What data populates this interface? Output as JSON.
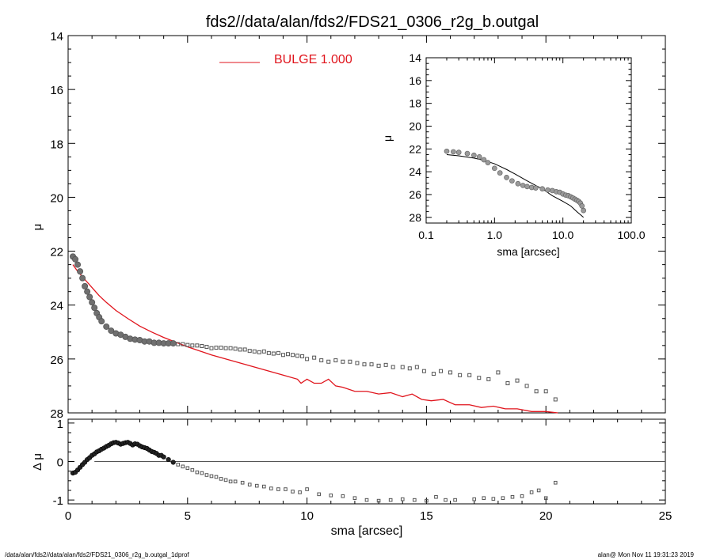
{
  "title": "fds2//data/alan/fds2/FDS21_0306_r2g_b.outgal",
  "footer": {
    "left": "/data/alan/fds2//data/alan/fds2/FDS21_0306_r2g_b.outgal_1dprof",
    "right": "alan@  Mon Nov 11 19:31:23 2019"
  },
  "colors": {
    "model": "#e0141c",
    "data": "#707070",
    "axes": "#000000"
  },
  "chart_data": [
    {
      "type": "scatter",
      "panel": "main-profile",
      "xlabel": "",
      "ylabel": "μ",
      "xlim": [
        0,
        25
      ],
      "ylim": [
        28,
        14
      ],
      "y_inverted": true,
      "xticks": [
        0,
        5,
        10,
        15,
        20,
        25
      ],
      "yticks": [
        14,
        16,
        18,
        20,
        22,
        24,
        26,
        28
      ],
      "legend": {
        "label": "BULGE  1.000",
        "placement": "top-center"
      },
      "series": [
        {
          "name": "BULGE  1.000",
          "kind": "line",
          "x": [
            0.2,
            0.4,
            0.6,
            0.8,
            1.0,
            1.3,
            1.6,
            2.0,
            2.5,
            3.0,
            3.5,
            4.0,
            5.0,
            6.0,
            7.0,
            8.0,
            9.0,
            9.6,
            9.75,
            10.0,
            10.3,
            10.6,
            10.9,
            11.2,
            11.5,
            12.0,
            12.5,
            13.0,
            13.5,
            14.0,
            14.4,
            14.8,
            15.2,
            15.7,
            16.2,
            16.8,
            17.3,
            17.8,
            18.3,
            18.8,
            19.4,
            20.0,
            20.5
          ],
          "y": [
            22.5,
            22.75,
            22.95,
            23.15,
            23.35,
            23.65,
            23.9,
            24.2,
            24.5,
            24.78,
            25.0,
            25.2,
            25.55,
            25.85,
            26.1,
            26.35,
            26.6,
            26.75,
            26.9,
            26.75,
            26.9,
            26.9,
            26.75,
            27.0,
            27.05,
            27.2,
            27.2,
            27.3,
            27.25,
            27.4,
            27.3,
            27.5,
            27.55,
            27.5,
            27.7,
            27.7,
            27.8,
            27.75,
            27.85,
            27.85,
            27.95,
            27.95,
            28.0
          ]
        },
        {
          "name": "",
          "kind": "points",
          "x": [
            0.2,
            0.3,
            0.4,
            0.5,
            0.6,
            0.7,
            0.8,
            0.9,
            1.0,
            1.1,
            1.2,
            1.3,
            1.4,
            1.6,
            1.8,
            2.0,
            2.2,
            2.4,
            2.6,
            2.8,
            3.0,
            3.2,
            3.4,
            3.6,
            3.8,
            4.0,
            4.2,
            4.4,
            4.6,
            4.8,
            5.0,
            5.2,
            5.4,
            5.6,
            5.8,
            6.0,
            6.2,
            6.4,
            6.6,
            6.8,
            7.0,
            7.2,
            7.4,
            7.6,
            7.8,
            8.0,
            8.2,
            8.4,
            8.6,
            8.8,
            9.0,
            9.2,
            9.4,
            9.6,
            9.8,
            10.0,
            10.3,
            10.6,
            10.9,
            11.2,
            11.5,
            11.8,
            12.1,
            12.4,
            12.7,
            13.0,
            13.3,
            13.6,
            14.0,
            14.3,
            14.6,
            14.9,
            15.3,
            15.6,
            16.0,
            16.4,
            16.8,
            17.2,
            17.6,
            18.0,
            18.4,
            18.8,
            19.2,
            19.6,
            20.0,
            20.4
          ],
          "y": [
            22.2,
            22.3,
            22.5,
            22.75,
            23.0,
            23.3,
            23.5,
            23.7,
            23.9,
            24.1,
            24.3,
            24.45,
            24.6,
            24.8,
            24.95,
            25.05,
            25.1,
            25.18,
            25.25,
            25.28,
            25.3,
            25.35,
            25.35,
            25.4,
            25.4,
            25.42,
            25.42,
            25.42,
            25.45,
            25.45,
            25.48,
            25.5,
            25.5,
            25.52,
            25.55,
            25.6,
            25.58,
            25.58,
            25.6,
            25.6,
            25.62,
            25.65,
            25.65,
            25.7,
            25.72,
            25.75,
            25.72,
            25.78,
            25.8,
            25.78,
            25.85,
            25.82,
            25.85,
            25.88,
            25.9,
            26.0,
            25.95,
            26.05,
            26.1,
            26.05,
            26.1,
            26.1,
            26.15,
            26.2,
            26.2,
            26.25,
            26.22,
            26.3,
            26.3,
            26.35,
            26.3,
            26.45,
            26.55,
            26.45,
            26.5,
            26.6,
            26.6,
            26.7,
            26.75,
            26.5,
            26.9,
            26.8,
            27.0,
            27.2,
            27.2,
            27.5
          ]
        }
      ]
    },
    {
      "type": "scatter",
      "panel": "residual",
      "xlabel": "sma [arcsec]",
      "ylabel": "Δ μ",
      "xlim": [
        0,
        25
      ],
      "ylim": [
        -1.1,
        1.1
      ],
      "xticks": [
        0,
        5,
        10,
        15,
        20,
        25
      ],
      "yticks": [
        -1,
        0,
        1
      ],
      "reference_line": {
        "y": 0,
        "x_from": 1.1,
        "x_to": 25
      },
      "series": [
        {
          "name": "",
          "kind": "points",
          "x": [
            0.2,
            0.3,
            0.4,
            0.5,
            0.6,
            0.7,
            0.8,
            0.9,
            1.0,
            1.1,
            1.2,
            1.3,
            1.4,
            1.5,
            1.6,
            1.7,
            1.8,
            1.9,
            2.0,
            2.1,
            2.2,
            2.3,
            2.4,
            2.5,
            2.6,
            2.7,
            2.8,
            2.9,
            3.0,
            3.1,
            3.2,
            3.3,
            3.4,
            3.5,
            3.6,
            3.7,
            3.8,
            3.9,
            4.0,
            4.2,
            4.4,
            4.6,
            4.8,
            5.0,
            5.2,
            5.4,
            5.6,
            5.8,
            6.0,
            6.2,
            6.4,
            6.6,
            6.8,
            7.0,
            7.3,
            7.6,
            7.9,
            8.2,
            8.5,
            8.8,
            9.1,
            9.4,
            9.7,
            10.0,
            10.5,
            11.0,
            11.5,
            12.0,
            12.5,
            13.0,
            13.5,
            14.0,
            14.5,
            15.0,
            15.4,
            15.8,
            16.2,
            17.0,
            17.4,
            17.8,
            18.2,
            18.6,
            19.0,
            19.4,
            19.7,
            20.0,
            20.4
          ],
          "y": [
            -0.3,
            -0.28,
            -0.22,
            -0.15,
            -0.08,
            -0.02,
            0.05,
            0.1,
            0.16,
            0.2,
            0.25,
            0.28,
            0.32,
            0.35,
            0.39,
            0.42,
            0.46,
            0.49,
            0.5,
            0.48,
            0.45,
            0.47,
            0.49,
            0.5,
            0.47,
            0.43,
            0.46,
            0.45,
            0.41,
            0.38,
            0.36,
            0.34,
            0.3,
            0.26,
            0.24,
            0.21,
            0.16,
            0.16,
            0.12,
            0.05,
            -0.02,
            -0.08,
            -0.13,
            -0.17,
            -0.22,
            -0.28,
            -0.3,
            -0.35,
            -0.38,
            -0.4,
            -0.45,
            -0.48,
            -0.52,
            -0.52,
            -0.55,
            -0.6,
            -0.63,
            -0.65,
            -0.7,
            -0.72,
            -0.72,
            -0.78,
            -0.8,
            -0.72,
            -0.85,
            -0.88,
            -0.9,
            -0.95,
            -1.0,
            -1.02,
            -1.0,
            -0.98,
            -1.0,
            -1.02,
            -0.92,
            -1.0,
            -1.0,
            -0.98,
            -0.95,
            -0.97,
            -0.95,
            -0.92,
            -0.9,
            -0.8,
            -0.75,
            -0.95,
            -0.55
          ]
        }
      ]
    },
    {
      "type": "scatter",
      "panel": "inset-log",
      "xlabel": "sma [arcsec]",
      "ylabel": "μ",
      "xscale": "log",
      "xlim": [
        0.1,
        100
      ],
      "ylim": [
        28.5,
        14
      ],
      "y_inverted": true,
      "xticks": [
        0.1,
        1.0,
        10.0,
        100.0
      ],
      "xtick_labels": [
        "0.1",
        "1.0",
        "10.0",
        "100.0"
      ],
      "yticks": [
        14,
        16,
        18,
        20,
        22,
        24,
        26,
        28
      ],
      "series": [
        {
          "name": "",
          "kind": "line",
          "x": [
            0.2,
            0.3,
            0.5,
            0.7,
            1.0,
            1.5,
            2.0,
            3.0,
            4.0,
            5.0,
            7.0,
            10.0,
            13.0,
            16.0,
            20.0
          ],
          "y": [
            22.5,
            22.6,
            22.8,
            23.0,
            23.3,
            23.8,
            24.2,
            24.8,
            25.2,
            25.5,
            26.1,
            26.6,
            27.0,
            27.5,
            28.0
          ]
        },
        {
          "name": "",
          "kind": "points",
          "x": [
            0.2,
            0.25,
            0.3,
            0.4,
            0.5,
            0.6,
            0.7,
            0.8,
            1.0,
            1.2,
            1.5,
            1.8,
            2.2,
            2.6,
            3.0,
            3.5,
            4.0,
            5.0,
            6.0,
            7.0,
            8.0,
            9.0,
            10.0,
            11.0,
            12.0,
            13.0,
            14.0,
            15.0,
            16.0,
            17.0,
            18.0,
            19.0,
            20.0
          ],
          "y": [
            22.2,
            22.25,
            22.3,
            22.4,
            22.55,
            22.7,
            22.95,
            23.2,
            23.7,
            24.1,
            24.5,
            24.8,
            25.05,
            25.2,
            25.3,
            25.38,
            25.42,
            25.5,
            25.6,
            25.65,
            25.75,
            25.8,
            25.95,
            26.05,
            26.1,
            26.2,
            26.3,
            26.4,
            26.5,
            26.6,
            26.75,
            27.0,
            27.4
          ]
        }
      ]
    }
  ]
}
